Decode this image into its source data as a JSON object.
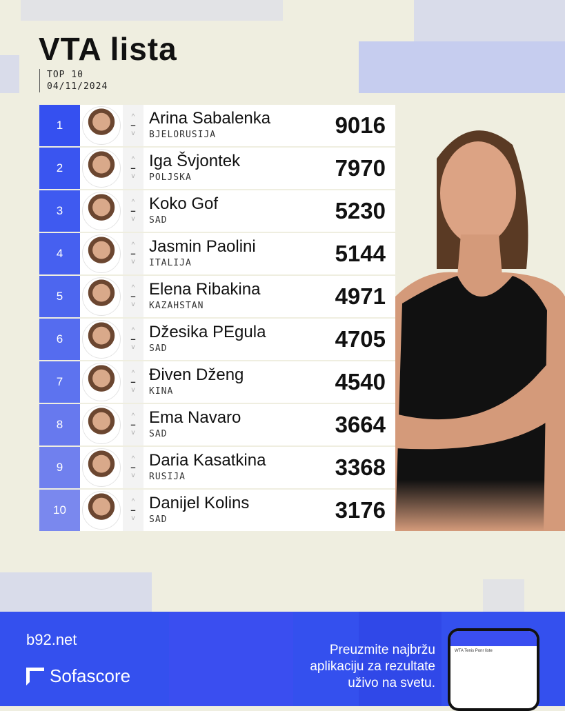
{
  "title": "VTA lista",
  "subtitle": "TOP 10",
  "date": "04/11/2024",
  "rank_colors": [
    "#3550f0",
    "#3a55f0",
    "#3f5af0",
    "#4660f0",
    "#4d66ef",
    "#556cef",
    "#5d73ef",
    "#6779ee",
    "#7080ee",
    "#7a88ee"
  ],
  "players": [
    {
      "rank": "1",
      "name": "Arina Sabalenka",
      "country": "BJELORUSIJA",
      "points": "9016",
      "change": "–"
    },
    {
      "rank": "2",
      "name": "Iga Švjontek",
      "country": "POLJSKA",
      "points": "7970",
      "change": "–"
    },
    {
      "rank": "3",
      "name": "Koko Gof",
      "country": "SAD",
      "points": "5230",
      "change": "–"
    },
    {
      "rank": "4",
      "name": "Jasmin Paolini",
      "country": "ITALIJA",
      "points": "5144",
      "change": "–"
    },
    {
      "rank": "5",
      "name": "Elena  Ribakina",
      "country": "KAZAHSTAN",
      "points": "4971",
      "change": "–"
    },
    {
      "rank": "6",
      "name": "Džesika PEgula",
      "country": "SAD",
      "points": "4705",
      "change": "–"
    },
    {
      "rank": "7",
      "name": "Điven Dženg",
      "country": "KINA",
      "points": "4540",
      "change": "–"
    },
    {
      "rank": "8",
      "name": "Ema Navaro",
      "country": "SAD",
      "points": "3664",
      "change": "–"
    },
    {
      "rank": "9",
      "name": "Daria Kasatkina",
      "country": "RUSIJA",
      "points": "3368",
      "change": "–"
    },
    {
      "rank": "10",
      "name": "Danijel Kolins",
      "country": "SAD",
      "points": "3176",
      "change": "–"
    }
  ],
  "footer": {
    "b92": "b92.net",
    "sofascore": "Sofascore",
    "promo": [
      "Preuzmite najbržu",
      "aplikaciju za rezultate",
      "uživo na svetu."
    ],
    "phone_title": "WTA Tenis Ponr liste"
  }
}
